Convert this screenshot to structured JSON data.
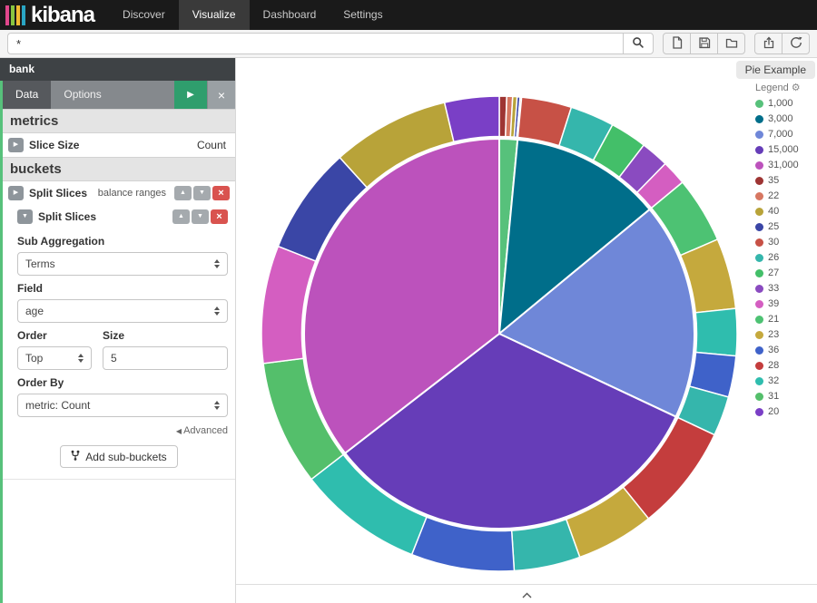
{
  "navbar": {
    "brand": "kibana",
    "items": [
      {
        "label": "Discover"
      },
      {
        "label": "Visualize"
      },
      {
        "label": "Dashboard"
      },
      {
        "label": "Settings"
      }
    ]
  },
  "toolbar": {
    "query_value": "*"
  },
  "sidebar": {
    "index_name": "bank",
    "tabs": [
      {
        "label": "Data"
      },
      {
        "label": "Options"
      }
    ],
    "metrics_heading": "metrics",
    "slice_size_label": "Slice Size",
    "slice_size_value": "Count",
    "buckets_heading": "buckets",
    "split_slices_label": "Split Slices",
    "split_slices_tag": "balance ranges",
    "nested_split_slices_label": "Split Slices",
    "sub_aggregation_label": "Sub Aggregation",
    "sub_aggregation_value": "Terms",
    "field_label": "Field",
    "field_value": "age",
    "order_label": "Order",
    "order_value": "Top",
    "size_label": "Size",
    "size_value": "5",
    "order_by_label": "Order By",
    "order_by_value": "metric: Count",
    "advanced_label": "Advanced",
    "add_sub_buckets_label": "Add sub-buckets"
  },
  "main": {
    "title": "Pie Example",
    "legend_heading": "Legend"
  },
  "chart_data": {
    "type": "pie",
    "title": "Pie Example",
    "inner_ring": {
      "field": "balance ranges",
      "slices": [
        {
          "label": "1,000",
          "value": 1.5,
          "color": "#57c17b"
        },
        {
          "label": "3,000",
          "value": 12.5,
          "color": "#006e8a"
        },
        {
          "label": "7,000",
          "value": 18.0,
          "color": "#6f87d8"
        },
        {
          "label": "15,000",
          "value": 32.5,
          "color": "#663db8"
        },
        {
          "label": "31,000",
          "value": 35.5,
          "color": "#bc52bc"
        }
      ]
    },
    "outer_ring": {
      "field": "age",
      "slices": [
        {
          "parent": "1,000",
          "label": "35",
          "value": 0.5,
          "color": "#9e3533"
        },
        {
          "parent": "1,000",
          "label": "22",
          "value": 0.4,
          "color": "#d77761"
        },
        {
          "parent": "1,000",
          "label": "40",
          "value": 0.3,
          "color": "#b8a339"
        },
        {
          "parent": "1,000",
          "label": "25",
          "value": 0.2,
          "color": "#3a46a6"
        },
        {
          "parent": "1,000",
          "label": "30",
          "value": 0.1,
          "color": "#c75146"
        },
        {
          "parent": "3,000",
          "label": "30",
          "value": 3.4,
          "color": "#c75146"
        },
        {
          "parent": "3,000",
          "label": "26",
          "value": 3.0,
          "color": "#35b6ac"
        },
        {
          "parent": "3,000",
          "label": "27",
          "value": 2.5,
          "color": "#43bf69"
        },
        {
          "parent": "3,000",
          "label": "33",
          "value": 1.9,
          "color": "#8a4bc0"
        },
        {
          "parent": "3,000",
          "label": "39",
          "value": 1.7,
          "color": "#d45ec1"
        },
        {
          "parent": "7,000",
          "label": "21",
          "value": 4.5,
          "color": "#4dc273"
        },
        {
          "parent": "7,000",
          "label": "23",
          "value": 4.8,
          "color": "#c5a93d"
        },
        {
          "parent": "7,000",
          "label": "32",
          "value": 3.2,
          "color": "#2fbdae"
        },
        {
          "parent": "7,000",
          "label": "36",
          "value": 2.8,
          "color": "#3f62c9"
        },
        {
          "parent": "7,000",
          "label": "26",
          "value": 2.7,
          "color": "#35b6ac"
        },
        {
          "parent": "15,000",
          "label": "28",
          "value": 7.2,
          "color": "#c43d3d"
        },
        {
          "parent": "15,000",
          "label": "23",
          "value": 5.3,
          "color": "#c5a93d"
        },
        {
          "parent": "15,000",
          "label": "26",
          "value": 4.5,
          "color": "#35b6ac"
        },
        {
          "parent": "15,000",
          "label": "36",
          "value": 7.0,
          "color": "#3f62c9"
        },
        {
          "parent": "15,000",
          "label": "32",
          "value": 8.5,
          "color": "#2fbdae"
        },
        {
          "parent": "31,000",
          "label": "31",
          "value": 8.5,
          "color": "#54bf6b"
        },
        {
          "parent": "31,000",
          "label": "39",
          "value": 8.0,
          "color": "#d45ec1"
        },
        {
          "parent": "31,000",
          "label": "25",
          "value": 7.3,
          "color": "#3a46a6"
        },
        {
          "parent": "31,000",
          "label": "40",
          "value": 8.0,
          "color": "#b8a339"
        },
        {
          "parent": "31,000",
          "label": "20",
          "value": 3.7,
          "color": "#7a3fc6"
        }
      ]
    },
    "legend_items": [
      {
        "label": "1,000",
        "color": "#57c17b"
      },
      {
        "label": "3,000",
        "color": "#006e8a"
      },
      {
        "label": "7,000",
        "color": "#6f87d8"
      },
      {
        "label": "15,000",
        "color": "#663db8"
      },
      {
        "label": "31,000",
        "color": "#bc52bc"
      },
      {
        "label": "35",
        "color": "#9e3533"
      },
      {
        "label": "22",
        "color": "#d77761"
      },
      {
        "label": "40",
        "color": "#b8a339"
      },
      {
        "label": "25",
        "color": "#3a46a6"
      },
      {
        "label": "30",
        "color": "#c75146"
      },
      {
        "label": "26",
        "color": "#35b6ac"
      },
      {
        "label": "27",
        "color": "#43bf69"
      },
      {
        "label": "33",
        "color": "#8a4bc0"
      },
      {
        "label": "39",
        "color": "#d45ec1"
      },
      {
        "label": "21",
        "color": "#4dc273"
      },
      {
        "label": "23",
        "color": "#c5a93d"
      },
      {
        "label": "36",
        "color": "#3f62c9"
      },
      {
        "label": "28",
        "color": "#c43d3d"
      },
      {
        "label": "32",
        "color": "#2fbdae"
      },
      {
        "label": "31",
        "color": "#54bf6b"
      },
      {
        "label": "20",
        "color": "#7a3fc6"
      }
    ]
  }
}
